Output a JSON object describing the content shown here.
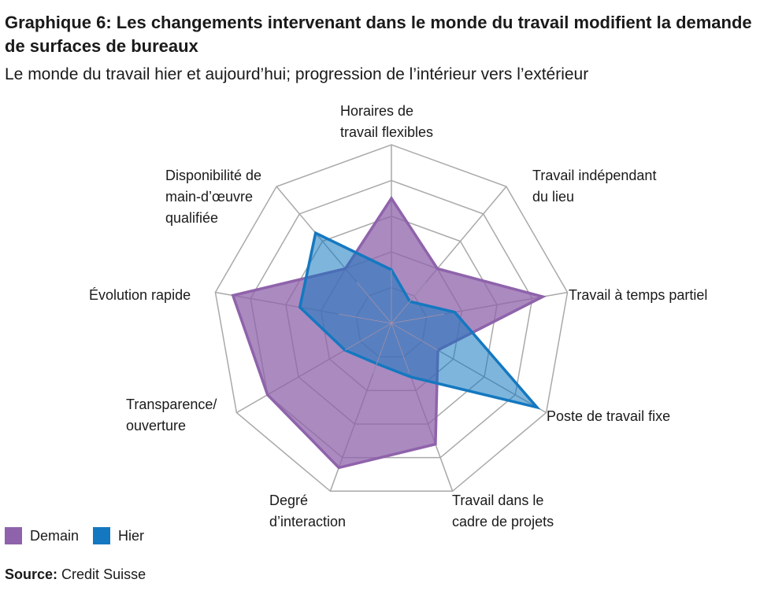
{
  "title": "Graphique 6: Les changements intervenant dans le monde du travail modifient la demande de surfaces de bureaux",
  "subtitle": "Le monde du travail hier et aujourd’hui; progression de l’intérieur vers l’extérieur",
  "source": {
    "label": "Source:",
    "text": "Credit Suisse"
  },
  "colors": {
    "demain": "#8f63ab",
    "hier": "#1478c0",
    "grid": "#a9a9a9"
  },
  "chart_data": {
    "type": "radar",
    "axes": [
      "Horaires de|travail flexibles",
      "Travail indépendant|du lieu",
      "Travail à temps partiel",
      "Poste de travail fixe",
      "Travail dans le|cadre de projets",
      "Degré|d’interaction",
      "Transparence/|ouverture",
      "Évolution rapide",
      "Disponibilité de|main-d’œuvre|qualifiée"
    ],
    "rlim": [
      0,
      5
    ],
    "grid_levels": 5,
    "grid": true,
    "legend_position": "bottom-left",
    "series": [
      {
        "name": "Demain",
        "values": [
          3.5,
          2.0,
          4.3,
          1.5,
          3.6,
          4.3,
          4.0,
          4.5,
          2.0
        ]
      },
      {
        "name": "Hier",
        "values": [
          1.5,
          0.8,
          1.8,
          4.7,
          1.6,
          1.2,
          1.5,
          2.6,
          3.3
        ]
      }
    ]
  }
}
